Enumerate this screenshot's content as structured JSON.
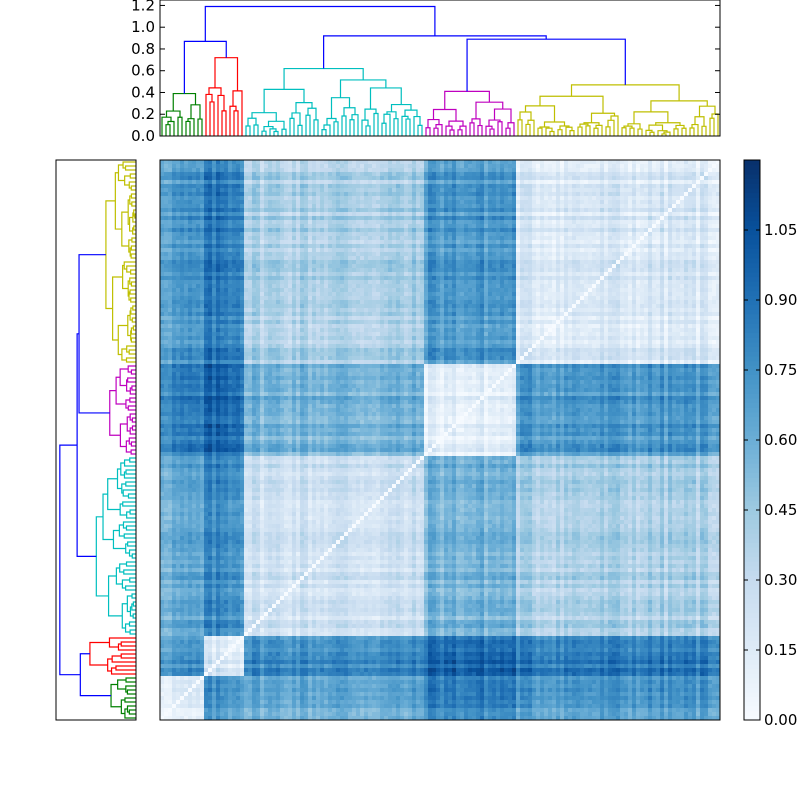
{
  "chart_data": [
    {
      "type": "dendrogram",
      "orientation": "top",
      "ylim": [
        0,
        1.25
      ],
      "yticks": [
        0.0,
        0.2,
        0.4,
        0.6,
        0.8,
        1.0,
        1.2
      ],
      "ytick_labels": [
        "0.0",
        "0.2",
        "0.4",
        "0.6",
        "0.8",
        "1.0",
        "1.2"
      ],
      "leaf_count": 140,
      "link_color": "#0000ff",
      "clusters": [
        {
          "color": "#008000",
          "leaf_range": [
            0,
            11
          ],
          "height": 0.39
        },
        {
          "color": "#ff0000",
          "leaf_range": [
            11,
            21
          ],
          "height": 0.72
        },
        {
          "color": "#00bfbf",
          "leaf_range": [
            21,
            66
          ],
          "height": 0.62
        },
        {
          "color": "#bf00bf",
          "leaf_range": [
            66,
            89
          ],
          "height": 0.41
        },
        {
          "color": "#bfbf00",
          "leaf_range": [
            89,
            140
          ],
          "height": 0.47
        }
      ],
      "upper_links": [
        {
          "height": 0.87,
          "joins": [
            "green",
            "red"
          ]
        },
        {
          "height": 0.89,
          "joins": [
            "magenta",
            "yellow"
          ]
        },
        {
          "height": 0.92,
          "joins": [
            "cyan",
            "magenta+yellow"
          ]
        },
        {
          "height": 1.19,
          "joins": [
            "green+red",
            "cyan+magenta+yellow"
          ]
        }
      ]
    },
    {
      "type": "dendrogram",
      "orientation": "left",
      "note": "mirrors top dendrogram, leaves ordered bottom-to-top"
    },
    {
      "type": "heatmap",
      "rows": 140,
      "cols": 140,
      "colormap": "Blues",
      "colormap_stops": [
        "#f7fbff",
        "#deebf7",
        "#c6dbef",
        "#9ecae1",
        "#6baed6",
        "#4292c6",
        "#2171b5",
        "#08519c",
        "#08306b"
      ],
      "vmin": 0.0,
      "vmax": 1.2,
      "diagonal": 0.0,
      "block_mean_values": {
        "order": [
          "green",
          "red",
          "cyan",
          "magenta",
          "yellow"
        ],
        "matrix": [
          [
            0.12,
            0.72,
            0.62,
            0.82,
            0.7
          ],
          [
            0.72,
            0.18,
            0.78,
            0.95,
            0.85
          ],
          [
            0.62,
            0.78,
            0.25,
            0.58,
            0.4
          ],
          [
            0.82,
            0.95,
            0.58,
            0.12,
            0.72
          ],
          [
            0.7,
            0.85,
            0.4,
            0.72,
            0.18
          ]
        ]
      }
    },
    {
      "type": "colorbar",
      "range": [
        0.0,
        1.2
      ],
      "ticks": [
        0.0,
        0.15,
        0.3,
        0.45,
        0.6,
        0.75,
        0.9,
        1.05
      ],
      "tick_labels": [
        "0.00",
        "0.15",
        "0.30",
        "0.45",
        "0.60",
        "0.75",
        "0.90",
        "1.05"
      ]
    }
  ]
}
